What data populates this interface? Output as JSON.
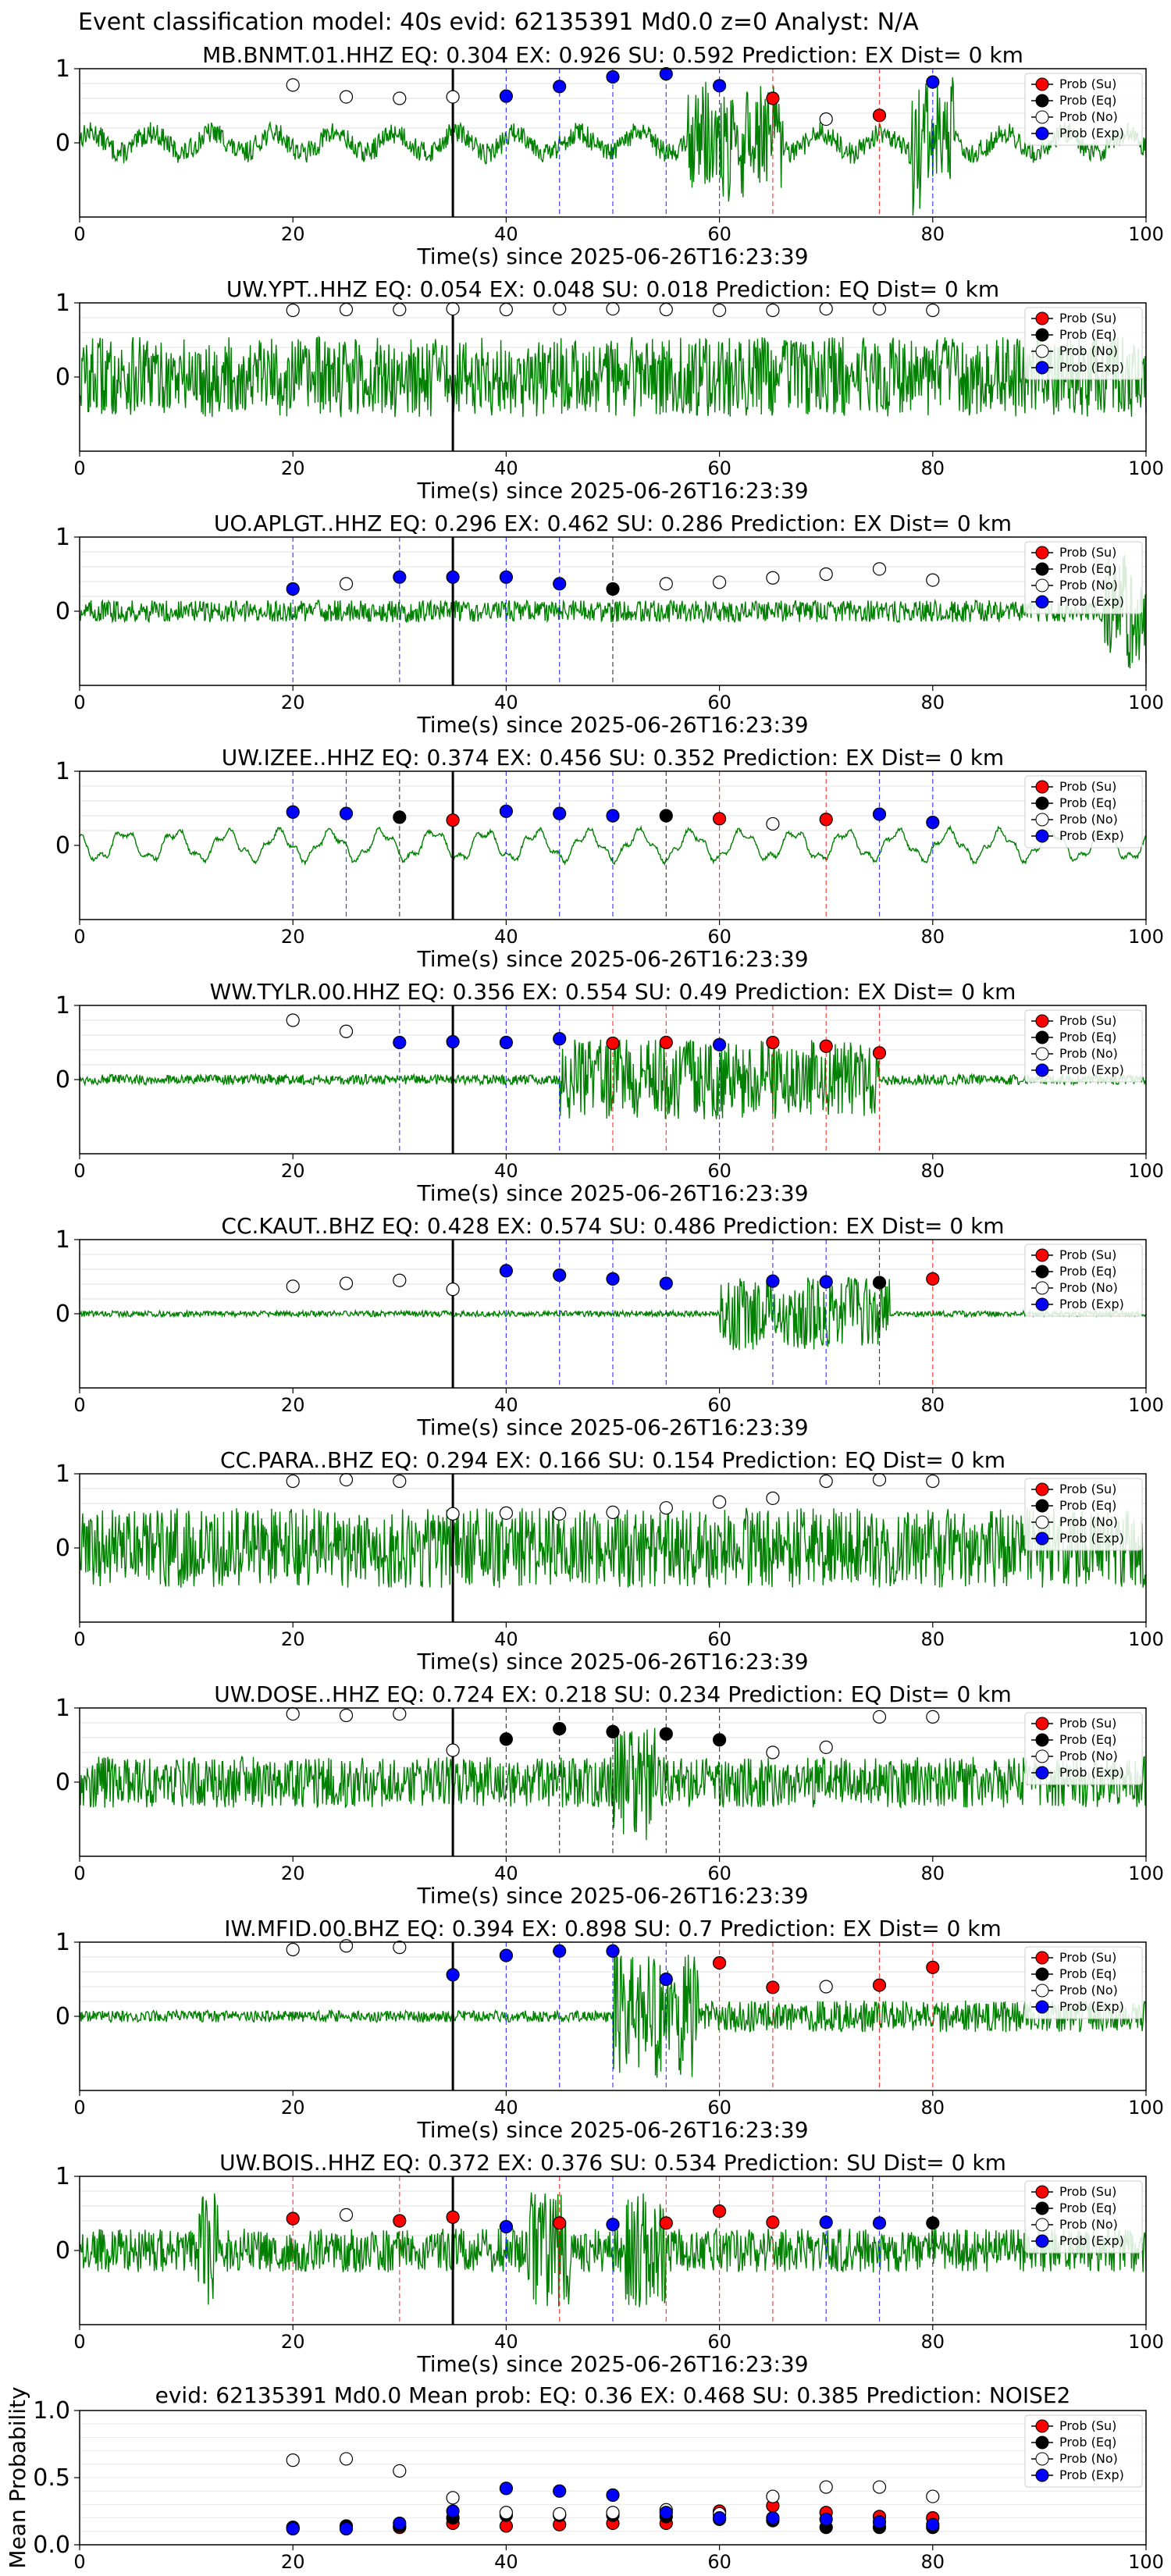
{
  "figure": {
    "suptitle": "Event classification model: 40s evid: 62135391 Md0.0 z=0 Analyst: N/A"
  },
  "legend_labels": [
    "Prob (Su)",
    "Prob (Eq)",
    "Prob (No)",
    "Prob (Exp)"
  ],
  "colors": {
    "su": "#ff0000",
    "eq": "#000000",
    "no": "#ffffff",
    "exp": "#0000ff",
    "trace": "#008000"
  },
  "shared_axes": {
    "xlabel": "Time(s) since 2025-06-26T16:23:39",
    "xticks": [
      "0",
      "20",
      "40",
      "60",
      "80",
      "100"
    ],
    "yticks": [
      "0",
      "1"
    ],
    "xlim": [
      0,
      100
    ],
    "arrival_time": 35
  },
  "chart_data": [
    {
      "type": "scatter",
      "station": "MB.BNMT.01.HHZ",
      "title": "MB.BNMT.01.HHZ   EQ: 0.304  EX: 0.926  SU: 0.592   Prediction: EX    Dist= 0 km",
      "ylim": [
        -1,
        1
      ],
      "waveform": "wavy-then-burst at 57-66 and 78-82 s",
      "points": [
        {
          "x": 20,
          "y": 0.78,
          "class": "no"
        },
        {
          "x": 25,
          "y": 0.62,
          "class": "no"
        },
        {
          "x": 30,
          "y": 0.6,
          "class": "no"
        },
        {
          "x": 35,
          "y": 0.62,
          "class": "no"
        },
        {
          "x": 40,
          "y": 0.63,
          "class": "exp"
        },
        {
          "x": 45,
          "y": 0.76,
          "class": "exp"
        },
        {
          "x": 50,
          "y": 0.89,
          "class": "exp"
        },
        {
          "x": 55,
          "y": 0.93,
          "class": "exp"
        },
        {
          "x": 60,
          "y": 0.77,
          "class": "exp"
        },
        {
          "x": 65,
          "y": 0.6,
          "class": "su"
        },
        {
          "x": 70,
          "y": 0.32,
          "class": "no"
        },
        {
          "x": 75,
          "y": 0.37,
          "class": "su"
        },
        {
          "x": 80,
          "y": 0.82,
          "class": "exp"
        }
      ]
    },
    {
      "type": "scatter",
      "station": "UW.YPT..HHZ",
      "title": "UW.YPT..HHZ   EQ: 0.054  EX: 0.048  SU: 0.018   Prediction: EQ    Dist= 0 km",
      "ylim": [
        -1,
        1
      ],
      "waveform": "noisy",
      "points": [
        {
          "x": 20,
          "y": 0.9,
          "class": "no"
        },
        {
          "x": 25,
          "y": 0.91,
          "class": "no"
        },
        {
          "x": 30,
          "y": 0.91,
          "class": "no"
        },
        {
          "x": 35,
          "y": 0.92,
          "class": "no"
        },
        {
          "x": 40,
          "y": 0.91,
          "class": "no"
        },
        {
          "x": 45,
          "y": 0.92,
          "class": "no"
        },
        {
          "x": 50,
          "y": 0.92,
          "class": "no"
        },
        {
          "x": 55,
          "y": 0.91,
          "class": "no"
        },
        {
          "x": 60,
          "y": 0.9,
          "class": "no"
        },
        {
          "x": 65,
          "y": 0.9,
          "class": "no"
        },
        {
          "x": 70,
          "y": 0.92,
          "class": "no"
        },
        {
          "x": 75,
          "y": 0.92,
          "class": "no"
        },
        {
          "x": 80,
          "y": 0.9,
          "class": "no"
        }
      ]
    },
    {
      "type": "scatter",
      "station": "UO.APLGT..HHZ",
      "title": "UO.APLGT..HHZ   EQ: 0.296  EX: 0.462  SU: 0.286   Prediction: EX    Dist= 0 km",
      "ylim": [
        -1,
        1
      ],
      "waveform": "low noise, spike near 100 s",
      "points": [
        {
          "x": 20,
          "y": 0.3,
          "class": "exp"
        },
        {
          "x": 25,
          "y": 0.37,
          "class": "no"
        },
        {
          "x": 30,
          "y": 0.46,
          "class": "exp"
        },
        {
          "x": 35,
          "y": 0.46,
          "class": "exp"
        },
        {
          "x": 40,
          "y": 0.46,
          "class": "exp"
        },
        {
          "x": 45,
          "y": 0.37,
          "class": "exp"
        },
        {
          "x": 50,
          "y": 0.3,
          "class": "eq"
        },
        {
          "x": 55,
          "y": 0.37,
          "class": "no"
        },
        {
          "x": 60,
          "y": 0.39,
          "class": "no"
        },
        {
          "x": 65,
          "y": 0.45,
          "class": "no"
        },
        {
          "x": 70,
          "y": 0.5,
          "class": "no"
        },
        {
          "x": 75,
          "y": 0.57,
          "class": "no"
        },
        {
          "x": 80,
          "y": 0.42,
          "class": "no"
        }
      ]
    },
    {
      "type": "scatter",
      "station": "UW.IZEE..HHZ",
      "title": "UW.IZEE..HHZ   EQ: 0.374  EX: 0.456  SU: 0.352   Prediction: EX    Dist= 0 km",
      "ylim": [
        -1,
        1
      ],
      "waveform": "smooth wavy",
      "points": [
        {
          "x": 20,
          "y": 0.45,
          "class": "exp"
        },
        {
          "x": 25,
          "y": 0.43,
          "class": "exp"
        },
        {
          "x": 30,
          "y": 0.38,
          "class": "eq"
        },
        {
          "x": 35,
          "y": 0.34,
          "class": "su"
        },
        {
          "x": 40,
          "y": 0.46,
          "class": "exp"
        },
        {
          "x": 45,
          "y": 0.43,
          "class": "exp"
        },
        {
          "x": 50,
          "y": 0.4,
          "class": "exp"
        },
        {
          "x": 55,
          "y": 0.4,
          "class": "eq"
        },
        {
          "x": 60,
          "y": 0.36,
          "class": "su"
        },
        {
          "x": 65,
          "y": 0.29,
          "class": "no"
        },
        {
          "x": 70,
          "y": 0.35,
          "class": "su"
        },
        {
          "x": 75,
          "y": 0.42,
          "class": "exp"
        },
        {
          "x": 80,
          "y": 0.31,
          "class": "exp"
        }
      ]
    },
    {
      "type": "scatter",
      "station": "WW.TYLR.00.HHZ",
      "title": "WW.TYLR.00.HHZ   EQ: 0.356  EX: 0.554  SU: 0.49   Prediction: EX    Dist= 0 km",
      "ylim": [
        -1,
        1
      ],
      "waveform": "quiet then burst 45-75 s",
      "points": [
        {
          "x": 20,
          "y": 0.8,
          "class": "no"
        },
        {
          "x": 25,
          "y": 0.65,
          "class": "no"
        },
        {
          "x": 30,
          "y": 0.5,
          "class": "exp"
        },
        {
          "x": 35,
          "y": 0.51,
          "class": "exp"
        },
        {
          "x": 40,
          "y": 0.5,
          "class": "exp"
        },
        {
          "x": 45,
          "y": 0.55,
          "class": "exp"
        },
        {
          "x": 50,
          "y": 0.49,
          "class": "su"
        },
        {
          "x": 55,
          "y": 0.5,
          "class": "su"
        },
        {
          "x": 60,
          "y": 0.47,
          "class": "exp"
        },
        {
          "x": 65,
          "y": 0.5,
          "class": "su"
        },
        {
          "x": 70,
          "y": 0.45,
          "class": "su"
        },
        {
          "x": 75,
          "y": 0.36,
          "class": "su"
        }
      ]
    },
    {
      "type": "scatter",
      "station": "CC.KAUT..BHZ",
      "title": "CC.KAUT..BHZ   EQ: 0.428  EX: 0.574  SU: 0.486   Prediction: EX    Dist= 0 km",
      "ylim": [
        -1,
        1
      ],
      "waveform": "quiet then burst 60-75 s",
      "points": [
        {
          "x": 20,
          "y": 0.37,
          "class": "no"
        },
        {
          "x": 25,
          "y": 0.41,
          "class": "no"
        },
        {
          "x": 30,
          "y": 0.45,
          "class": "no"
        },
        {
          "x": 35,
          "y": 0.33,
          "class": "no"
        },
        {
          "x": 40,
          "y": 0.58,
          "class": "exp"
        },
        {
          "x": 45,
          "y": 0.52,
          "class": "exp"
        },
        {
          "x": 50,
          "y": 0.47,
          "class": "exp"
        },
        {
          "x": 55,
          "y": 0.41,
          "class": "exp"
        },
        {
          "x": 65,
          "y": 0.44,
          "class": "exp"
        },
        {
          "x": 70,
          "y": 0.43,
          "class": "exp"
        },
        {
          "x": 75,
          "y": 0.42,
          "class": "eq"
        },
        {
          "x": 80,
          "y": 0.47,
          "class": "su"
        }
      ]
    },
    {
      "type": "scatter",
      "station": "CC.PARA..BHZ",
      "title": "CC.PARA..BHZ   EQ: 0.294  EX: 0.166  SU: 0.154   Prediction: EQ    Dist= 0 km",
      "ylim": [
        -1,
        1
      ],
      "waveform": "noisy",
      "points": [
        {
          "x": 20,
          "y": 0.9,
          "class": "no"
        },
        {
          "x": 25,
          "y": 0.92,
          "class": "no"
        },
        {
          "x": 30,
          "y": 0.9,
          "class": "no"
        },
        {
          "x": 35,
          "y": 0.46,
          "class": "no"
        },
        {
          "x": 40,
          "y": 0.47,
          "class": "no"
        },
        {
          "x": 45,
          "y": 0.46,
          "class": "no"
        },
        {
          "x": 50,
          "y": 0.48,
          "class": "no"
        },
        {
          "x": 55,
          "y": 0.54,
          "class": "no"
        },
        {
          "x": 60,
          "y": 0.62,
          "class": "no"
        },
        {
          "x": 65,
          "y": 0.67,
          "class": "no"
        },
        {
          "x": 70,
          "y": 0.9,
          "class": "no"
        },
        {
          "x": 75,
          "y": 0.92,
          "class": "no"
        },
        {
          "x": 80,
          "y": 0.9,
          "class": "no"
        }
      ]
    },
    {
      "type": "scatter",
      "station": "UW.DOSE..HHZ",
      "title": "UW.DOSE..HHZ   EQ: 0.724  EX: 0.218  SU: 0.234   Prediction: EQ    Dist= 0 km",
      "ylim": [
        -1,
        1
      ],
      "waveform": "noisy, spike near 52 s",
      "points": [
        {
          "x": 20,
          "y": 0.92,
          "class": "no"
        },
        {
          "x": 25,
          "y": 0.9,
          "class": "no"
        },
        {
          "x": 30,
          "y": 0.92,
          "class": "no"
        },
        {
          "x": 35,
          "y": 0.43,
          "class": "no"
        },
        {
          "x": 40,
          "y": 0.58,
          "class": "eq"
        },
        {
          "x": 45,
          "y": 0.72,
          "class": "eq"
        },
        {
          "x": 50,
          "y": 0.68,
          "class": "eq"
        },
        {
          "x": 55,
          "y": 0.65,
          "class": "eq"
        },
        {
          "x": 60,
          "y": 0.57,
          "class": "eq"
        },
        {
          "x": 65,
          "y": 0.4,
          "class": "no"
        },
        {
          "x": 70,
          "y": 0.47,
          "class": "no"
        },
        {
          "x": 75,
          "y": 0.88,
          "class": "no"
        },
        {
          "x": 80,
          "y": 0.88,
          "class": "no"
        }
      ]
    },
    {
      "type": "scatter",
      "station": "IW.MFID.00.BHZ",
      "title": "IW.MFID.00.BHZ   EQ: 0.394  EX: 0.898  SU: 0.7   Prediction: EX    Dist= 0 km",
      "ylim": [
        -1,
        1
      ],
      "waveform": "quiet then burst 50-58 s",
      "points": [
        {
          "x": 20,
          "y": 0.9,
          "class": "no"
        },
        {
          "x": 25,
          "y": 0.95,
          "class": "no"
        },
        {
          "x": 30,
          "y": 0.93,
          "class": "no"
        },
        {
          "x": 35,
          "y": 0.56,
          "class": "exp"
        },
        {
          "x": 40,
          "y": 0.82,
          "class": "exp"
        },
        {
          "x": 45,
          "y": 0.88,
          "class": "exp"
        },
        {
          "x": 50,
          "y": 0.88,
          "class": "exp"
        },
        {
          "x": 55,
          "y": 0.5,
          "class": "exp"
        },
        {
          "x": 60,
          "y": 0.72,
          "class": "su"
        },
        {
          "x": 65,
          "y": 0.39,
          "class": "su"
        },
        {
          "x": 70,
          "y": 0.4,
          "class": "no"
        },
        {
          "x": 75,
          "y": 0.42,
          "class": "su"
        },
        {
          "x": 80,
          "y": 0.66,
          "class": "su"
        }
      ]
    },
    {
      "type": "scatter",
      "station": "UW.BOIS..HHZ",
      "title": "UW.BOIS..HHZ   EQ: 0.372  EX: 0.376  SU: 0.534   Prediction: SU    Dist= 0 km",
      "ylim": [
        -1,
        1
      ],
      "waveform": "noisy with spikes",
      "points": [
        {
          "x": 20,
          "y": 0.43,
          "class": "su"
        },
        {
          "x": 25,
          "y": 0.48,
          "class": "no"
        },
        {
          "x": 30,
          "y": 0.4,
          "class": "su"
        },
        {
          "x": 35,
          "y": 0.45,
          "class": "su"
        },
        {
          "x": 40,
          "y": 0.32,
          "class": "exp"
        },
        {
          "x": 45,
          "y": 0.37,
          "class": "su"
        },
        {
          "x": 50,
          "y": 0.35,
          "class": "exp"
        },
        {
          "x": 55,
          "y": 0.37,
          "class": "su"
        },
        {
          "x": 60,
          "y": 0.53,
          "class": "su"
        },
        {
          "x": 65,
          "y": 0.38,
          "class": "su"
        },
        {
          "x": 70,
          "y": 0.38,
          "class": "exp"
        },
        {
          "x": 75,
          "y": 0.37,
          "class": "exp"
        },
        {
          "x": 80,
          "y": 0.37,
          "class": "eq"
        }
      ]
    },
    {
      "type": "scatter",
      "title": "evid: 62135391  Md0.0   Mean prob:   EQ: 0.36  EX: 0.468  SU: 0.385   Prediction: NOISE2",
      "ylabel": "Mean Probability",
      "ylim": [
        0,
        1
      ],
      "yticks": [
        "0.0",
        "0.5",
        "1.0"
      ],
      "x": [
        20,
        25,
        30,
        35,
        40,
        45,
        50,
        55,
        60,
        65,
        70,
        75,
        80
      ],
      "series": [
        {
          "name": "Prob (Su)",
          "class": "su",
          "values": [
            0.12,
            0.12,
            0.13,
            0.16,
            0.14,
            0.15,
            0.16,
            0.16,
            0.25,
            0.29,
            0.24,
            0.21,
            0.2
          ]
        },
        {
          "name": "Prob (Eq)",
          "class": "eq",
          "values": [
            0.13,
            0.14,
            0.14,
            0.2,
            0.22,
            0.22,
            0.22,
            0.21,
            0.19,
            0.18,
            0.13,
            0.13,
            0.13
          ]
        },
        {
          "name": "Prob (No)",
          "class": "no",
          "values": [
            0.63,
            0.64,
            0.55,
            0.35,
            0.24,
            0.23,
            0.24,
            0.26,
            0.23,
            0.36,
            0.43,
            0.43,
            0.36
          ]
        },
        {
          "name": "Prob (Exp)",
          "class": "exp",
          "values": [
            0.12,
            0.12,
            0.16,
            0.25,
            0.42,
            0.4,
            0.37,
            0.24,
            0.2,
            0.2,
            0.19,
            0.17,
            0.15
          ]
        }
      ]
    }
  ]
}
